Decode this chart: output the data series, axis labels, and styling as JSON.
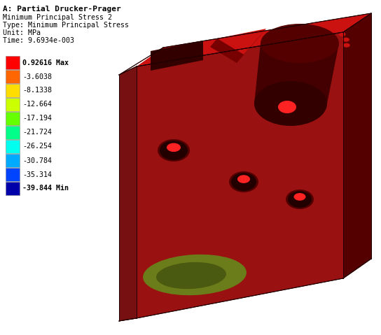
{
  "title_line1": "A: Partial Drucker-Prager",
  "title_line2": "Minimum Principal Stress 2",
  "title_line3": "Type: Minimum Principal Stress",
  "title_line4": "Unit: MPa",
  "title_line5": "Time: 9.6934e-003",
  "legend_values": [
    "0.92616 Max",
    "-3.6038",
    "-8.1338",
    "-12.664",
    "-17.194",
    "-21.724",
    "-26.254",
    "-30.784",
    "-35.314",
    "-39.844 Min"
  ],
  "legend_colors": [
    "#ff0000",
    "#ff6600",
    "#ffdd00",
    "#ccff00",
    "#66ff00",
    "#00ff88",
    "#00ffee",
    "#00aaff",
    "#0044ff",
    "#0000aa"
  ],
  "bg_color": "#ffffff",
  "col_top": "#cc1111",
  "col_front": "#991111",
  "col_left": "#771111",
  "col_right": "#550000",
  "col_dark": "#330000",
  "col_hole": "#550000",
  "col_bright": "#ff2222",
  "green1": "#6b7c1a",
  "green2": "#4a5a10"
}
